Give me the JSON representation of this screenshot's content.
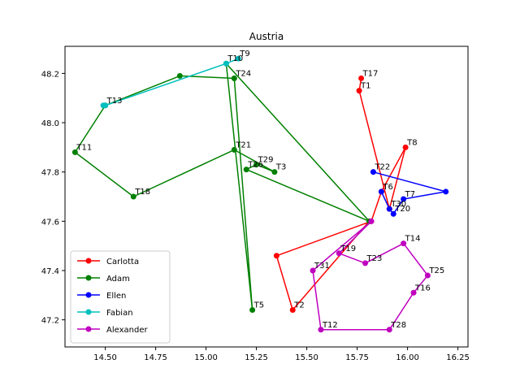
{
  "chart_data": {
    "type": "line",
    "title": "Austria",
    "xlabel": "",
    "ylabel": "",
    "xlim": [
      14.3,
      16.3
    ],
    "ylim": [
      47.09,
      48.31
    ],
    "x_ticks": [
      "14.50",
      "14.75",
      "15.00",
      "15.25",
      "15.50",
      "15.75",
      "16.00",
      "16.25"
    ],
    "y_ticks": [
      "47.2",
      "47.4",
      "47.6",
      "47.8",
      "48.0",
      "48.2"
    ],
    "grid": false,
    "legend_position": "lower-left",
    "series": [
      {
        "name": "Carlotta",
        "color": "#ff0000",
        "points": [
          {
            "x": 15.77,
            "y": 48.18,
            "label": "T17"
          },
          {
            "x": 15.76,
            "y": 48.13,
            "label": "T1"
          },
          {
            "x": 15.91,
            "y": 47.65,
            "label": "T30"
          },
          {
            "x": 15.99,
            "y": 47.9,
            "label": "T8"
          },
          {
            "x": 15.87,
            "y": 47.72,
            "label": "T6"
          },
          {
            "x": 15.82,
            "y": 47.6,
            "label": ""
          },
          {
            "x": 15.35,
            "y": 47.46,
            "label": ""
          },
          {
            "x": 15.43,
            "y": 47.24,
            "label": "T2"
          },
          {
            "x": 15.81,
            "y": 47.6,
            "label": ""
          }
        ]
      },
      {
        "name": "Adam",
        "color": "#008000",
        "points": [
          {
            "x": 15.14,
            "y": 48.18,
            "label": "T24"
          },
          {
            "x": 14.87,
            "y": 48.19,
            "label": ""
          },
          {
            "x": 14.5,
            "y": 48.07,
            "label": ""
          },
          {
            "x": 14.35,
            "y": 47.88,
            "label": "T11"
          },
          {
            "x": 14.64,
            "y": 47.7,
            "label": "T18"
          },
          {
            "x": 15.14,
            "y": 47.89,
            "label": "T21"
          },
          {
            "x": 15.34,
            "y": 47.8,
            "label": "T3"
          },
          {
            "x": 15.25,
            "y": 47.83,
            "label": "T29"
          },
          {
            "x": 15.2,
            "y": 47.81,
            "label": "T26"
          },
          {
            "x": 15.81,
            "y": 47.6,
            "label": ""
          },
          {
            "x": 15.1,
            "y": 48.24,
            "label": "T10"
          },
          {
            "x": 15.23,
            "y": 47.24,
            "label": "T5"
          },
          {
            "x": 15.14,
            "y": 48.18,
            "label": ""
          }
        ]
      },
      {
        "name": "Ellen",
        "color": "#0000ff",
        "points": [
          {
            "x": 15.83,
            "y": 47.8,
            "label": "T22"
          },
          {
            "x": 16.19,
            "y": 47.72,
            "label": ""
          },
          {
            "x": 15.98,
            "y": 47.69,
            "label": "T7"
          },
          {
            "x": 15.93,
            "y": 47.63,
            "label": "T20"
          },
          {
            "x": 15.91,
            "y": 47.65,
            "label": ""
          },
          {
            "x": 15.87,
            "y": 47.72,
            "label": ""
          }
        ]
      },
      {
        "name": "Fabian",
        "color": "#00bfbf",
        "points": [
          {
            "x": 15.16,
            "y": 48.26,
            "label": "T9"
          },
          {
            "x": 15.1,
            "y": 48.24,
            "label": ""
          },
          {
            "x": 14.5,
            "y": 48.07,
            "label": "T13"
          },
          {
            "x": 14.49,
            "y": 48.07,
            "label": ""
          }
        ]
      },
      {
        "name": "Alexander",
        "color": "#bf00bf",
        "points": [
          {
            "x": 15.82,
            "y": 47.6,
            "label": ""
          },
          {
            "x": 15.66,
            "y": 47.47,
            "label": "T19"
          },
          {
            "x": 15.79,
            "y": 47.43,
            "label": "T23"
          },
          {
            "x": 15.98,
            "y": 47.51,
            "label": "T14"
          },
          {
            "x": 16.1,
            "y": 47.38,
            "label": "T25"
          },
          {
            "x": 16.03,
            "y": 47.31,
            "label": "T16"
          },
          {
            "x": 15.91,
            "y": 47.16,
            "label": "T28"
          },
          {
            "x": 15.57,
            "y": 47.16,
            "label": "T12"
          },
          {
            "x": 15.53,
            "y": 47.4,
            "label": "T31"
          },
          {
            "x": 15.82,
            "y": 47.6,
            "label": ""
          }
        ]
      }
    ]
  }
}
